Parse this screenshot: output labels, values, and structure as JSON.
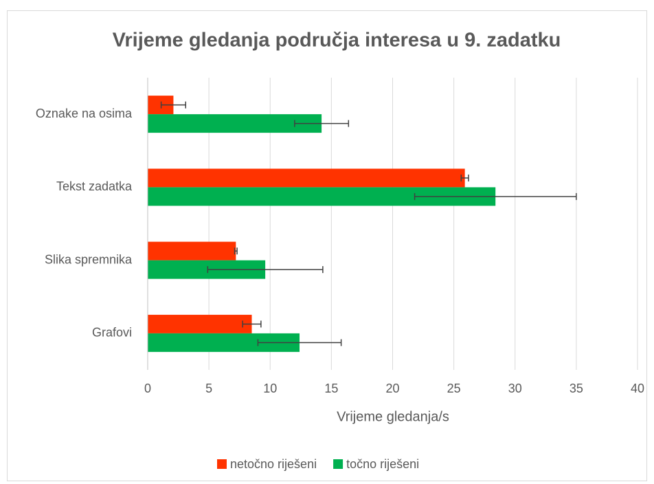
{
  "chart_data": {
    "type": "bar",
    "orientation": "horizontal",
    "title": "Vrijeme gledanja područja interesa u 9. zadatku",
    "x_label": "Vrijeme gledanja/s",
    "categories": [
      "Oznake na osima",
      "Tekst zadatka",
      "Slika spremnika",
      "Grafovi"
    ],
    "series": [
      {
        "name": "netočno riješeni",
        "color": "#ff3300",
        "values": [
          2.1,
          25.9,
          7.2,
          8.5
        ],
        "errors": [
          1.0,
          0.3,
          0.1,
          0.75
        ]
      },
      {
        "name": "točno riješeni",
        "color": "#00b050",
        "values": [
          14.2,
          28.4,
          9.6,
          12.4
        ],
        "errors": [
          2.2,
          6.6,
          4.7,
          3.4
        ]
      }
    ],
    "xlim": [
      0,
      40
    ],
    "xticks": [
      0,
      5,
      10,
      15,
      20,
      25,
      30,
      35,
      40
    ],
    "grid": true,
    "legend": "bottom"
  }
}
